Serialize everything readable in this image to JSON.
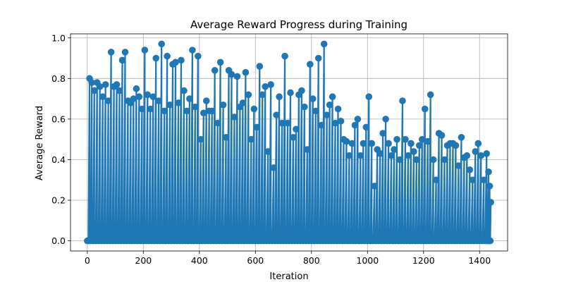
{
  "chart_data": {
    "type": "line",
    "title": "Average Reward Progress during Training",
    "xlabel": "Iteration",
    "ylabel": "Average Reward",
    "xlim": [
      -60,
      1500
    ],
    "ylim": [
      -0.05,
      1.02
    ],
    "xticks": [
      0,
      200,
      400,
      600,
      800,
      1000,
      1200,
      1400
    ],
    "yticks": [
      0.0,
      0.2,
      0.4,
      0.6,
      0.8,
      1.0
    ],
    "grid": true,
    "marker": "circle",
    "color": "#1f77b4",
    "series": [
      {
        "x": [
          0,
          8,
          16,
          25,
          35,
          45,
          55,
          65,
          75,
          85,
          95,
          105,
          115,
          125,
          135,
          145,
          155,
          165,
          175,
          185,
          195,
          205,
          215,
          225,
          235,
          245,
          255,
          265,
          275,
          285,
          295,
          305,
          315,
          325,
          335,
          345,
          355,
          365,
          375,
          385,
          395,
          405,
          415,
          425,
          435,
          445,
          455,
          465,
          475,
          485,
          495,
          505,
          515,
          525,
          535,
          545,
          555,
          565,
          575,
          585,
          595,
          605,
          615,
          625,
          635,
          645,
          655,
          665,
          675,
          685,
          695,
          705,
          715,
          725,
          735,
          745,
          755,
          765,
          775,
          785,
          795,
          805,
          815,
          825,
          835,
          845,
          855,
          865,
          875,
          885,
          895,
          905,
          915,
          925,
          935,
          945,
          955,
          965,
          975,
          985,
          995,
          1005,
          1015,
          1025,
          1035,
          1045,
          1055,
          1065,
          1075,
          1085,
          1095,
          1105,
          1115,
          1125,
          1135,
          1145,
          1155,
          1165,
          1175,
          1185,
          1195,
          1205,
          1215,
          1225,
          1235,
          1245,
          1255,
          1265,
          1275,
          1285,
          1295,
          1305,
          1315,
          1325,
          1335,
          1345,
          1355,
          1365,
          1375,
          1385,
          1395,
          1405,
          1415,
          1425,
          1432,
          1436,
          1440
        ],
        "y": [
          0.0,
          0.8,
          0.78,
          0.74,
          0.78,
          0.76,
          0.71,
          0.77,
          0.69,
          0.93,
          0.76,
          0.77,
          0.74,
          0.89,
          0.93,
          0.69,
          0.68,
          0.7,
          0.75,
          0.71,
          0.65,
          0.94,
          0.72,
          0.65,
          0.71,
          0.9,
          0.69,
          0.97,
          0.64,
          0.91,
          0.67,
          0.87,
          0.88,
          0.68,
          0.89,
          0.74,
          0.64,
          0.7,
          0.94,
          0.66,
          0.91,
          0.5,
          0.63,
          0.69,
          0.64,
          0.64,
          0.84,
          0.58,
          0.88,
          0.67,
          0.51,
          0.84,
          0.82,
          0.61,
          0.81,
          0.66,
          0.68,
          0.83,
          0.72,
          0.5,
          0.65,
          0.56,
          0.86,
          0.72,
          0.76,
          0.44,
          0.77,
          0.36,
          0.62,
          0.71,
          0.58,
          0.91,
          0.58,
          0.73,
          0.51,
          0.55,
          0.72,
          0.74,
          0.66,
          0.45,
          0.87,
          0.7,
          0.64,
          0.9,
          0.57,
          0.97,
          0.62,
          0.67,
          0.71,
          0.58,
          0.65,
          0.59,
          0.5,
          0.49,
          0.42,
          0.48,
          0.57,
          0.6,
          0.42,
          0.48,
          0.56,
          0.71,
          0.48,
          0.27,
          0.45,
          0.43,
          0.53,
          0.6,
          0.48,
          0.42,
          0.45,
          0.5,
          0.4,
          0.69,
          0.5,
          0.42,
          0.48,
          0.44,
          0.4,
          0.47,
          0.5,
          0.65,
          0.49,
          0.72,
          0.4,
          0.3,
          0.53,
          0.52,
          0.4,
          0.47,
          0.48,
          0.48,
          0.47,
          0.37,
          0.51,
          0.41,
          0.42,
          0.35,
          0.3,
          0.44,
          0.48,
          0.42,
          0.3,
          0.43,
          0.34,
          0.27,
          0.19
        ]
      }
    ]
  }
}
